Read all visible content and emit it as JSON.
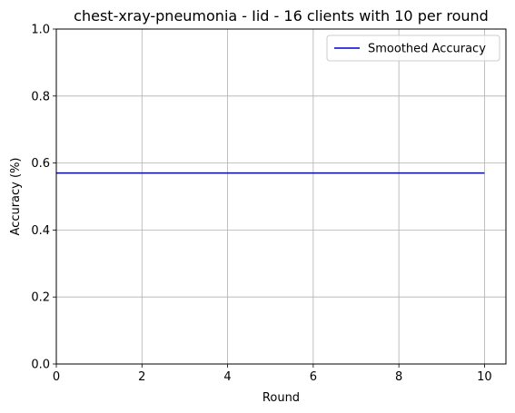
{
  "chart_data": {
    "type": "line",
    "title": "chest-xray-pneumonia - Iid - 16 clients with 10 per round",
    "xlabel": "Round",
    "ylabel": "Accuracy (%)",
    "xlim": [
      0,
      10.5
    ],
    "ylim": [
      0,
      1.0
    ],
    "xticks": [
      0,
      2,
      4,
      6,
      8,
      10
    ],
    "xtick_labels": [
      "0",
      "2",
      "4",
      "6",
      "8",
      "10"
    ],
    "yticks": [
      0.0,
      0.2,
      0.4,
      0.6,
      0.8,
      1.0
    ],
    "ytick_labels": [
      "0.0",
      "0.2",
      "0.4",
      "0.6",
      "0.8",
      "1.0"
    ],
    "grid": true,
    "legend_position": "top-right",
    "series": [
      {
        "name": "Smoothed Accuracy",
        "color": "#0000cc",
        "x": [
          0,
          1,
          2,
          3,
          4,
          5,
          6,
          7,
          8,
          9,
          10
        ],
        "y": [
          0.57,
          0.57,
          0.57,
          0.57,
          0.57,
          0.57,
          0.57,
          0.57,
          0.57,
          0.57,
          0.57
        ]
      }
    ]
  }
}
